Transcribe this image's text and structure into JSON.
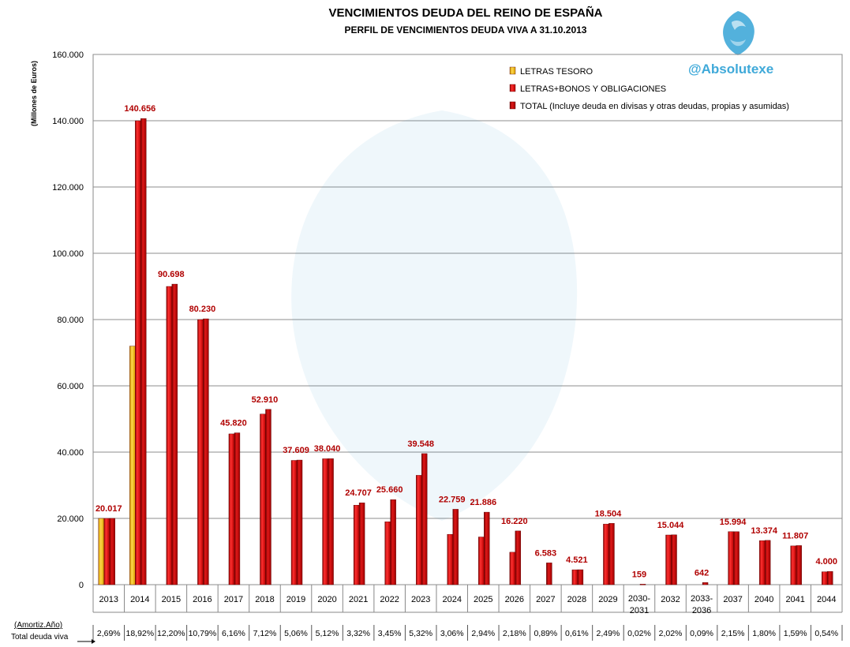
{
  "title": "VENCIMIENTOS DEUDA DEL REINO DE ESPAÑA",
  "subtitle": "PERFIL DE VENCIMIENTOS DEUDA VIVA A 31.10.2013",
  "brand": "@Absolutexe",
  "row_labels": {
    "amort": "(Amortiz.Año)",
    "total": "Total deuda viva"
  },
  "colors": {
    "letras": "#f2b600",
    "bonos": "#e00000",
    "total": "#c40000",
    "label": "#b00000"
  },
  "chart_data": {
    "type": "bar",
    "ylabel": "(Millones de Euros)",
    "ylim": [
      0,
      160000
    ],
    "yticks": [
      "0",
      "20.000",
      "40.000",
      "60.000",
      "80.000",
      "100.000",
      "120.000",
      "140.000",
      "160.000"
    ],
    "grid": true,
    "legend_position": "top-right",
    "categories": [
      "2013",
      "2014",
      "2015",
      "2016",
      "2017",
      "2018",
      "2019",
      "2020",
      "2021",
      "2022",
      "2023",
      "2024",
      "2025",
      "2026",
      "2027",
      "2028",
      "2029",
      "2030-2031",
      "2032",
      "2033-2036",
      "2037",
      "2040",
      "2041",
      "2044"
    ],
    "series": [
      {
        "name": "LETRAS TESORO",
        "values": [
          20000,
          72000,
          null,
          null,
          null,
          null,
          null,
          null,
          null,
          null,
          null,
          null,
          null,
          null,
          null,
          null,
          null,
          null,
          null,
          null,
          null,
          null,
          null,
          null
        ]
      },
      {
        "name": "LETRAS+BONOS Y OBLIGACIONES",
        "values": [
          20000,
          140000,
          90000,
          80000,
          45500,
          51500,
          37500,
          38000,
          24000,
          19000,
          33000,
          15200,
          14400,
          9800,
          null,
          4500,
          18300,
          null,
          15000,
          null,
          16000,
          13300,
          11700,
          3900
        ]
      },
      {
        "name": "TOTAL (Incluye deuda en divisas y otras deudas, propias y asumidas)",
        "values": [
          20017,
          140656,
          90698,
          80230,
          45820,
          52910,
          37609,
          38040,
          24707,
          25660,
          39548,
          22759,
          21886,
          16220,
          6583,
          4521,
          18504,
          159,
          15044,
          642,
          15994,
          13374,
          11807,
          4000
        ]
      }
    ],
    "data_labels": [
      "20.017",
      "140.656",
      "90.698",
      "80.230",
      "45.820",
      "52.910",
      "37.609",
      "38.040",
      "24.707",
      "25.660",
      "39.548",
      "22.759",
      "21.886",
      "16.220",
      "6.583",
      "4.521",
      "18.504",
      "159",
      "15.044",
      "642",
      "15.994",
      "13.374",
      "11.807",
      "4.000"
    ],
    "percentages": [
      "2,69%",
      "18,92%",
      "12,20%",
      "10,79%",
      "6,16%",
      "7,12%",
      "5,06%",
      "5,12%",
      "3,32%",
      "3,45%",
      "5,32%",
      "3,06%",
      "2,94%",
      "2,18%",
      "0,89%",
      "0,61%",
      "2,49%",
      "0,02%",
      "2,02%",
      "0,09%",
      "2,15%",
      "1,80%",
      "1,59%",
      "0,54%"
    ]
  }
}
